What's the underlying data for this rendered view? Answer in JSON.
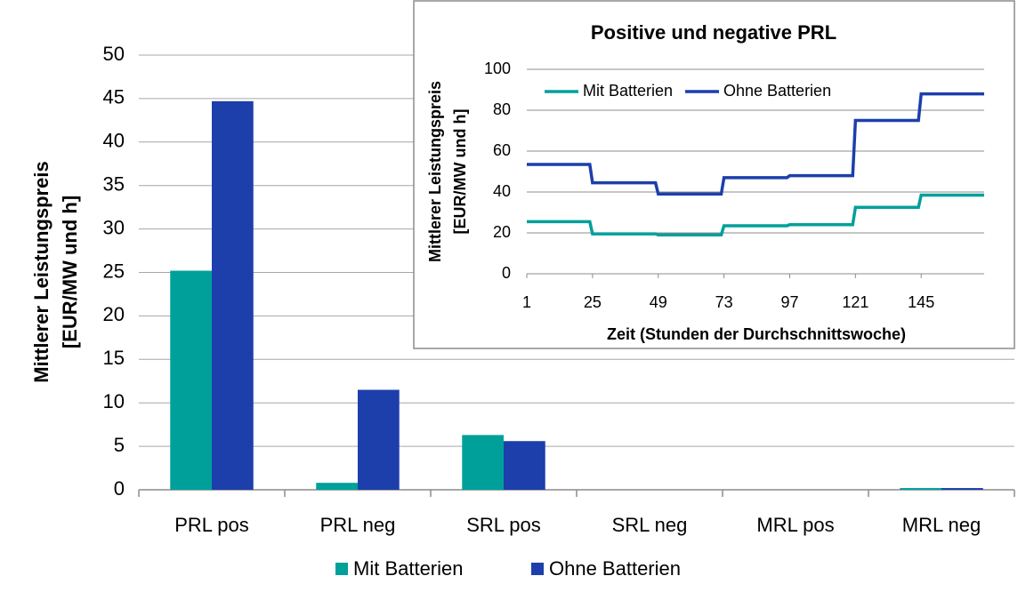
{
  "chart_data": [
    {
      "type": "bar",
      "categories": [
        "PRL pos",
        "PRL neg",
        "SRL pos",
        "SRL neg",
        "MRL pos",
        "MRL neg"
      ],
      "series": [
        {
          "name": "Mit Batterien",
          "color": "#00a09a",
          "values": [
            25.2,
            0.8,
            6.3,
            0,
            0,
            0.2
          ]
        },
        {
          "name": "Ohne Batterien",
          "color": "#1d3fab",
          "values": [
            44.7,
            11.5,
            5.6,
            0,
            0,
            0.2
          ]
        }
      ],
      "ylim": [
        0,
        50
      ],
      "yticks": [
        0,
        5,
        10,
        15,
        20,
        25,
        30,
        35,
        40,
        45,
        50
      ],
      "y_label": [
        "Mittlerer Leistungspreis",
        "[EUR/MW und h]"
      ],
      "grid": true,
      "legend": "bottom"
    },
    {
      "type": "line",
      "title": "Positive und negative PRL",
      "x": [
        1,
        24,
        25,
        48,
        49,
        72,
        73,
        96,
        97,
        120,
        121,
        144,
        145,
        168
      ],
      "series": [
        {
          "name": "Mit Batterien",
          "color": "#00a09a",
          "values": [
            25.5,
            25.5,
            19.5,
            19.5,
            19,
            19,
            23.5,
            23.5,
            24,
            24,
            32.5,
            32.5,
            38.5,
            38.5
          ]
        },
        {
          "name": "Ohne Batterien",
          "color": "#1d3fab",
          "values": [
            53.5,
            53.5,
            44.5,
            44.5,
            39,
            39,
            47,
            47,
            48,
            48,
            75,
            75,
            88,
            88
          ]
        }
      ],
      "xlim": [
        1,
        168
      ],
      "xticks": [
        1,
        25,
        49,
        73,
        97,
        121,
        145
      ],
      "ylim": [
        0,
        100
      ],
      "yticks": [
        0,
        20,
        40,
        60,
        80,
        100
      ],
      "x_label": "Zeit (Stunden der Durchschnittswoche)",
      "y_label": [
        "Mittlerer Leistungspreis",
        "[EUR/MW und h]"
      ],
      "grid": true,
      "legend": "top"
    }
  ]
}
